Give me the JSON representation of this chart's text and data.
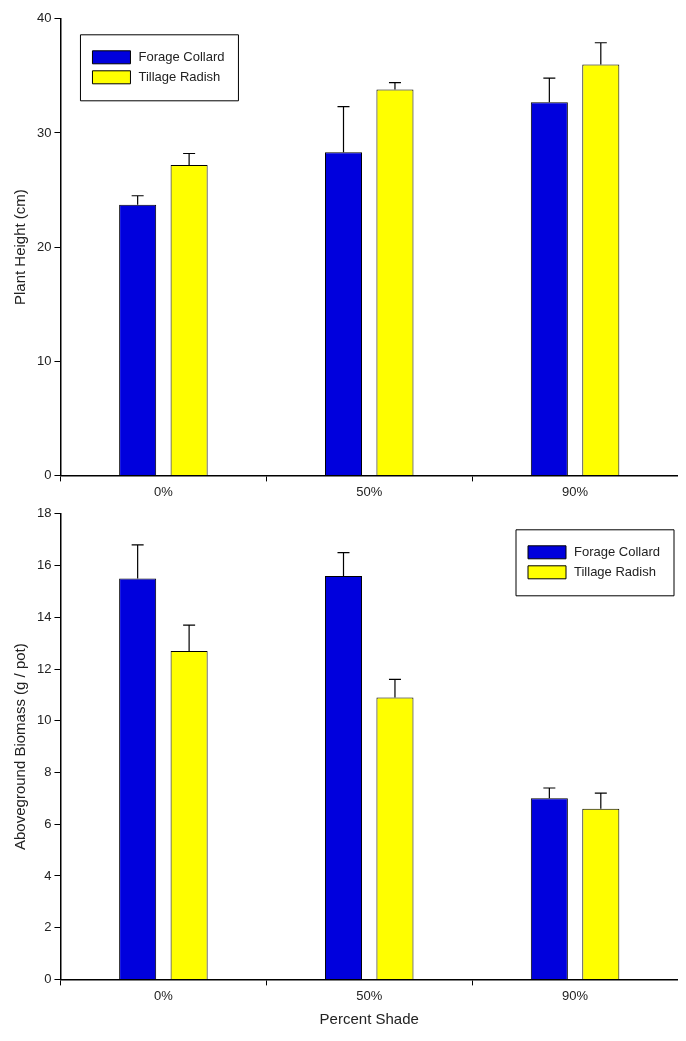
{
  "chart_data": [
    {
      "type": "bar",
      "ylabel": "Plant Height (cm)",
      "categories": [
        "0%",
        "50%",
        "90%"
      ],
      "ylim": [
        0,
        40
      ],
      "yticks": [
        0,
        10,
        20,
        30,
        40
      ],
      "legend": "top left",
      "series": [
        {
          "name": "Forage Collard",
          "color": "#0000dd",
          "values": [
            23.7,
            28.3,
            32.7
          ],
          "errors": [
            [
              23.7,
              24.5
            ],
            [
              28.3,
              32.3
            ],
            [
              32.7,
              34.8
            ]
          ]
        },
        {
          "name": "Tillage Radish",
          "color": "#ffff00",
          "values": [
            27.2,
            33.8,
            36.0
          ],
          "errors": [
            [
              27.2,
              28.2
            ],
            [
              33.8,
              34.4
            ],
            [
              36.0,
              37.9
            ]
          ]
        }
      ]
    },
    {
      "type": "bar",
      "ylabel": "Aboveground Biomass (g / pot)",
      "xlabel": "Percent Shade",
      "categories": [
        "0%",
        "50%",
        "90%"
      ],
      "ylim": [
        0,
        18
      ],
      "yticks": [
        0,
        2,
        4,
        6,
        8,
        10,
        12,
        14,
        16,
        18
      ],
      "legend": "top right",
      "series": [
        {
          "name": "Forage Collard",
          "color": "#0000dd",
          "values": [
            15.5,
            15.6,
            7.0
          ],
          "errors": [
            [
              15.5,
              16.8
            ],
            [
              15.6,
              16.5
            ],
            [
              7.0,
              7.4
            ]
          ]
        },
        {
          "name": "Tillage Radish",
          "color": "#ffff00",
          "values": [
            12.7,
            10.9,
            6.6
          ],
          "errors": [
            [
              12.7,
              13.7
            ],
            [
              10.9,
              11.6
            ],
            [
              6.6,
              7.2
            ]
          ]
        }
      ]
    }
  ]
}
